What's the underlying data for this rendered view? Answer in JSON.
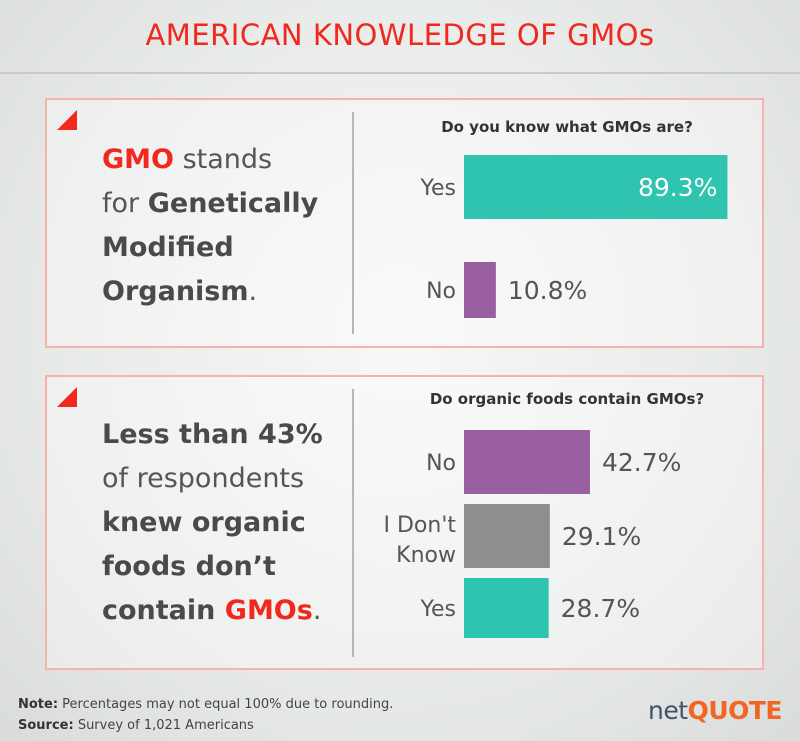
{
  "title": "AMERICAN KNOWLEDGE OF GMOs",
  "panel1": {
    "statement": {
      "w1": "GMO",
      "w2": " stands",
      "w3": "for ",
      "w4": "Genetically",
      "w5": "Modified",
      "w6": "Organism",
      "w7": "."
    }
  },
  "panel2": {
    "statement": {
      "w1": "Less than 43%",
      "w2": "of respondents",
      "w3": "knew organic",
      "w4": "foods don’t",
      "w5": "contain ",
      "w6": "GMOs",
      "w7": "."
    }
  },
  "chart_data": [
    {
      "type": "bar",
      "orientation": "horizontal",
      "title": "Do you know what GMOs are?",
      "categories": [
        "Yes",
        "No"
      ],
      "values": [
        89.3,
        10.8
      ],
      "value_labels": [
        "89.3%",
        "10.8%"
      ],
      "colors": [
        "#2ec4b0",
        "#9a5fa0"
      ],
      "xlim": [
        0,
        100
      ]
    },
    {
      "type": "bar",
      "orientation": "horizontal",
      "title": "Do organic foods contain GMOs?",
      "categories": [
        "No",
        "I Don't Know",
        "Yes"
      ],
      "values": [
        42.7,
        29.1,
        28.7
      ],
      "value_labels": [
        "42.7%",
        "29.1%",
        "28.7%"
      ],
      "colors": [
        "#9a5fa0",
        "#8e8e8e",
        "#2ec4b0"
      ],
      "xlim": [
        0,
        100
      ]
    }
  ],
  "footer": {
    "note_label": "Note:",
    "note": " Percentages may not equal 100% due to rounding.",
    "source_label": "Source:",
    "source": " Survey of 1,021 Americans"
  },
  "logo": {
    "net": "net",
    "quote": "QUOTE"
  }
}
